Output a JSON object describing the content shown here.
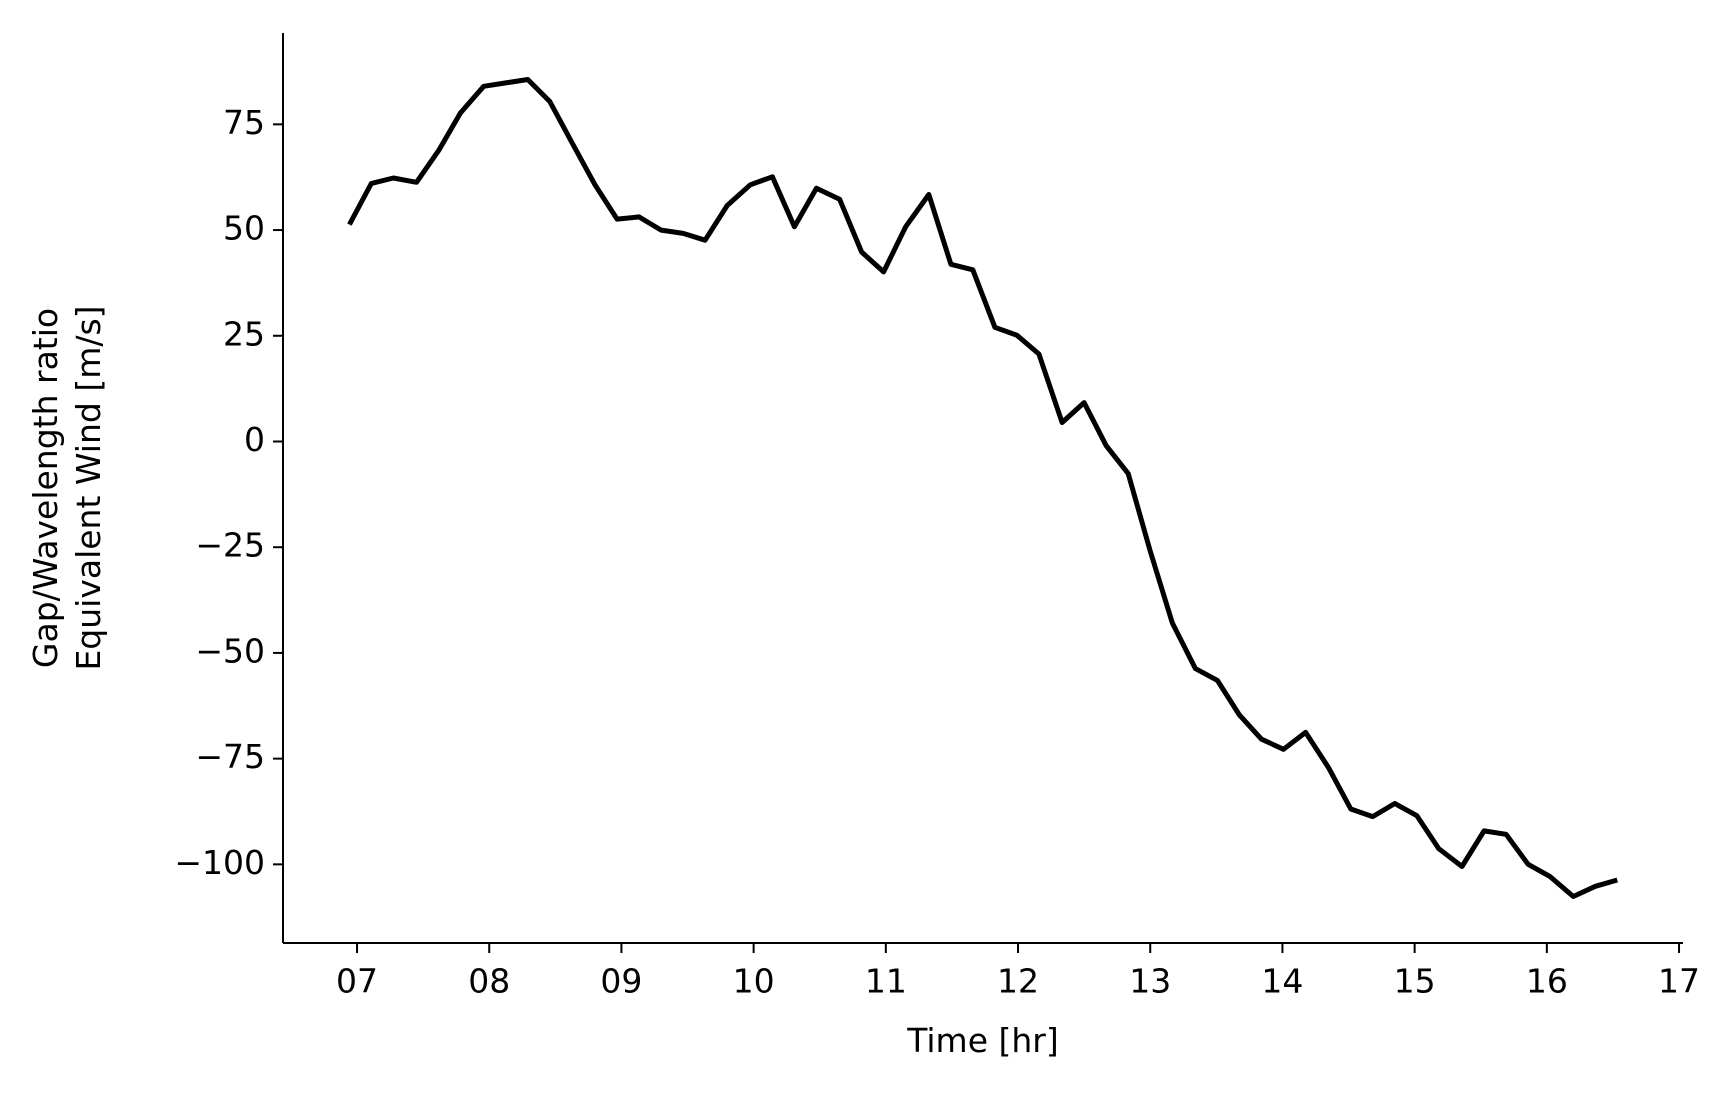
{
  "chart_data": {
    "type": "line",
    "xlabel": "Time [hr]",
    "ylabel": [
      "Gap/Wavelength ratio",
      "Equivalent Wind [m/s]"
    ],
    "x": [
      6.942,
      7.108,
      7.275,
      7.45,
      7.617,
      7.783,
      7.958,
      8.125,
      8.292,
      8.458,
      8.625,
      8.8,
      8.967,
      9.133,
      9.3,
      9.467,
      9.633,
      9.8,
      9.975,
      10.142,
      10.308,
      10.475,
      10.65,
      10.817,
      10.983,
      11.15,
      11.325,
      11.492,
      11.658,
      11.825,
      11.992,
      12.158,
      12.333,
      12.5,
      12.667,
      12.833,
      13.0,
      13.167,
      13.342,
      13.508,
      13.675,
      13.842,
      14.008,
      14.175,
      14.35,
      14.517,
      14.683,
      14.85,
      15.017,
      15.183,
      15.358,
      15.525,
      15.692,
      15.858,
      16.025,
      16.2,
      16.367,
      16.533
    ],
    "series": [
      {
        "name": "Equivalent Wind",
        "color": "#000000",
        "values": [
          51.3,
          61.0,
          62.3,
          61.3,
          68.8,
          77.7,
          84.0,
          84.8,
          85.6,
          80.4,
          70.7,
          60.7,
          52.6,
          53.1,
          50.0,
          49.2,
          47.6,
          55.8,
          60.7,
          62.6,
          50.8,
          59.9,
          57.3,
          44.8,
          40.1,
          50.8,
          58.4,
          41.9,
          40.6,
          27.0,
          25.1,
          20.7,
          4.5,
          9.2,
          -1.0,
          -7.6,
          -25.9,
          -42.9,
          -53.7,
          -56.5,
          -64.7,
          -70.4,
          -72.8,
          -68.8,
          -77.2,
          -86.9,
          -88.7,
          -85.6,
          -88.5,
          -96.3,
          -100.5,
          -92.1,
          -92.9,
          -100.0,
          -102.9,
          -107.6,
          -105.2,
          -103.7
        ]
      }
    ],
    "xlim": [
      6.44,
      17.03
    ],
    "ylim": [
      -118.6,
      96.6
    ],
    "xticks": [
      {
        "value": 7,
        "label": "07"
      },
      {
        "value": 8,
        "label": "08"
      },
      {
        "value": 9,
        "label": "09"
      },
      10,
      11,
      12,
      13,
      14,
      15,
      16,
      17
    ],
    "yticks": [
      {
        "value": -100,
        "label": "−100"
      },
      {
        "value": -75,
        "label": "−75"
      },
      {
        "value": -50,
        "label": "−50"
      },
      {
        "value": -25,
        "label": "−25"
      },
      0,
      25,
      50,
      75
    ],
    "grid": false
  }
}
